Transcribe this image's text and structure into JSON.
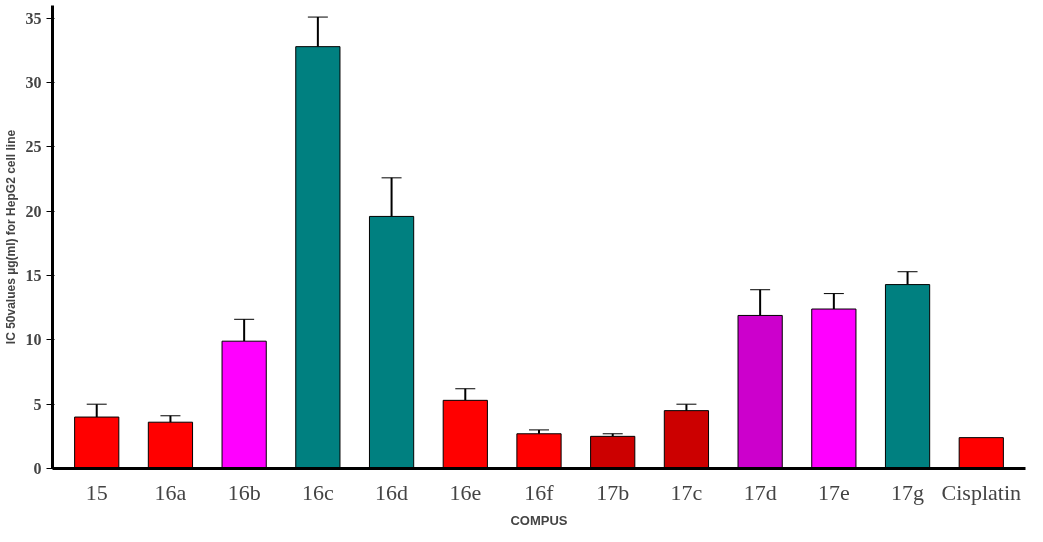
{
  "chart_data": {
    "type": "bar",
    "xlabel": "COMPUS",
    "ylabel": "IC 50values µg(ml) for HepG2 cell line",
    "categories": [
      "15",
      "16a",
      "16b",
      "16c",
      "16d",
      "16e",
      "16f",
      "17b",
      "17c",
      "17d",
      "17e",
      "17g",
      "Cisplatin"
    ],
    "values": [
      4.0,
      3.6,
      9.9,
      32.8,
      19.6,
      5.3,
      2.7,
      2.5,
      4.5,
      11.9,
      12.4,
      14.3,
      2.4
    ],
    "errors": [
      1.0,
      0.5,
      1.7,
      2.3,
      3.0,
      0.9,
      0.3,
      0.2,
      0.5,
      2.0,
      1.2,
      1.0,
      null
    ],
    "colors": [
      "#ff0000",
      "#ff0000",
      "#ff00ff",
      "#008080",
      "#008080",
      "#ff0000",
      "#ff0000",
      "#cc0000",
      "#cc0000",
      "#cc00cc",
      "#ff00ff",
      "#008080",
      "#ff0000"
    ],
    "ylim": [
      0,
      36
    ],
    "yticks": [
      0,
      5,
      10,
      15,
      20,
      25,
      30,
      35
    ],
    "grid": false
  }
}
